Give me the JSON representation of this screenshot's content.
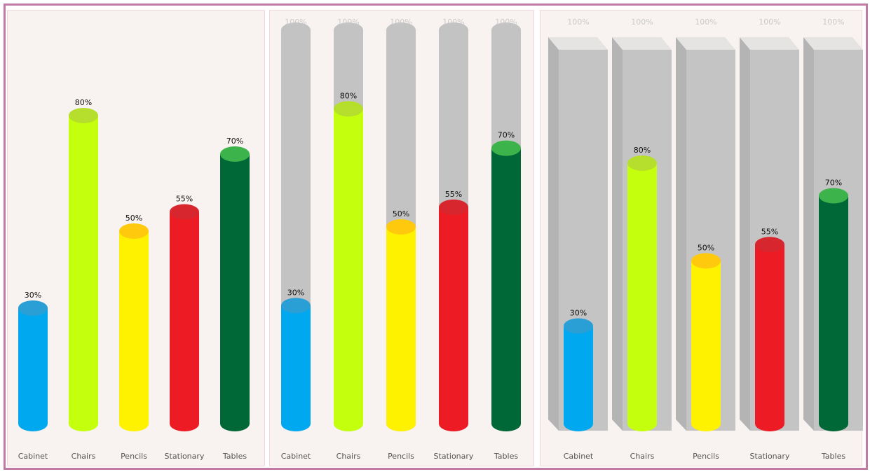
{
  "chart_data": [
    {
      "type": "bar",
      "style": "cylinder",
      "categories": [
        "Cabinet",
        "Chairs",
        "Pencils",
        "Stationary",
        "Tables"
      ],
      "values": [
        30,
        80,
        50,
        55,
        70
      ],
      "value_labels": [
        "30%",
        "80%",
        "50%",
        "55%",
        "70%"
      ],
      "ylim": [
        0,
        100
      ],
      "grid": false
    },
    {
      "type": "bar",
      "style": "cylinder-with-background",
      "categories": [
        "Cabinet",
        "Chairs",
        "Pencils",
        "Stationary",
        "Tables"
      ],
      "values": [
        30,
        80,
        50,
        55,
        70
      ],
      "value_labels": [
        "30%",
        "80%",
        "50%",
        "55%",
        "70%"
      ],
      "background_value": 100,
      "background_label": "100%",
      "ylim": [
        0,
        100
      ],
      "grid": false
    },
    {
      "type": "bar",
      "style": "cylinder-in-box",
      "categories": [
        "Cabinet",
        "Chairs",
        "Pencils",
        "Stationary",
        "Tables"
      ],
      "values": [
        30,
        80,
        50,
        55,
        70
      ],
      "value_labels": [
        "30%",
        "80%",
        "50%",
        "55%",
        "70%"
      ],
      "background_value": 100,
      "background_label": "100%",
      "ylim": [
        0,
        100
      ],
      "grid": false
    }
  ],
  "colors": {
    "bars": [
      "#00a8f0",
      "#c4ff0e",
      "#fff200",
      "#ed1c24",
      "#006837"
    ],
    "caps": [
      "#2a9fd6",
      "#b6de2c",
      "#ffc90e",
      "#d8262f",
      "#3cb44b"
    ],
    "background_cylinder": "#c3c3c3",
    "box_front": "#c4c4c4",
    "box_top": "#e6e3e3",
    "box_side": "#b4b4b4"
  }
}
